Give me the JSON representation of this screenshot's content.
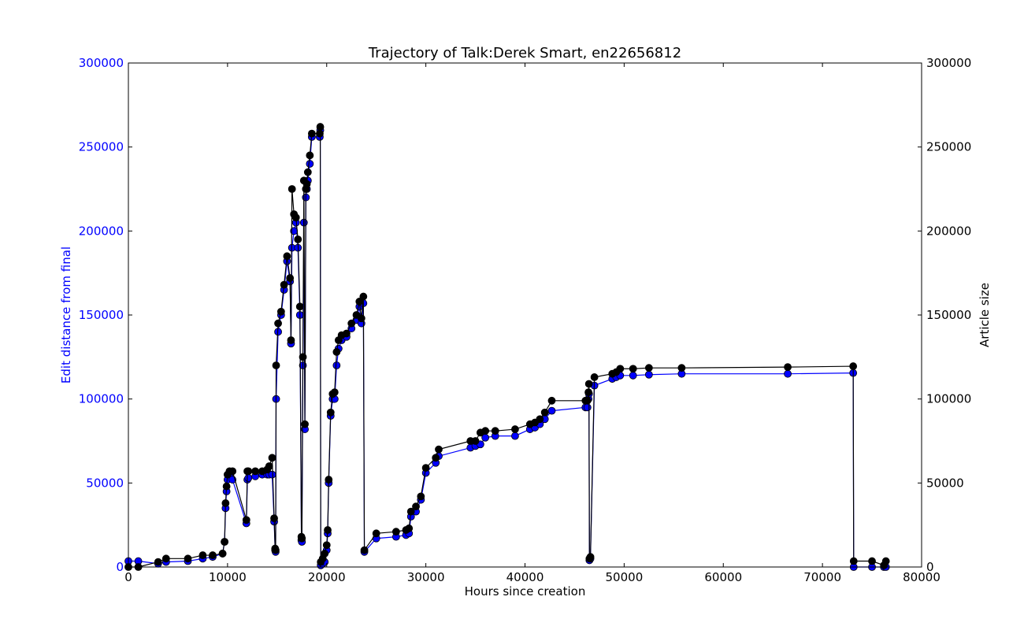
{
  "chart_data": {
    "type": "line",
    "title": "Trajectory of Talk:Derek Smart, en22656812",
    "xlabel": "Hours since creation",
    "ylabel_left": "Edit distance from final",
    "ylabel_right": "Article size",
    "xlim": [
      0,
      80000
    ],
    "ylim_left": [
      0,
      300000
    ],
    "ylim_right": [
      0,
      300000
    ],
    "x_ticks": [
      "0",
      "10000",
      "20000",
      "30000",
      "40000",
      "50000",
      "60000",
      "70000",
      "80000"
    ],
    "y_ticks_left": [
      "0",
      "50000",
      "100000",
      "150000",
      "200000",
      "250000",
      "300000"
    ],
    "y_ticks_right": [
      "0",
      "50000",
      "100000",
      "150000",
      "200000",
      "250000",
      "300000"
    ],
    "grid": false,
    "colors": {
      "left_axis": "#0000ff",
      "edit_distance": "#0000ff",
      "article_size": "#000000"
    },
    "series": [
      {
        "color": "#0000ff",
        "axis": "left",
        "x": [
          0,
          1000,
          3000,
          3800,
          6000,
          7500,
          8500,
          9500,
          9700,
          9800,
          9900,
          10000,
          10200,
          10500,
          11900,
          12000,
          12100,
          12800,
          13500,
          14000,
          14200,
          14500,
          14700,
          14800,
          14850,
          14900,
          15100,
          15400,
          15700,
          16000,
          16300,
          16400,
          16500,
          16700,
          16900,
          17100,
          17300,
          17450,
          17500,
          17600,
          17700,
          17800,
          17900,
          18000,
          18100,
          18300,
          18500,
          19300,
          19350,
          19400,
          19600,
          19800,
          20000,
          20100,
          20200,
          20400,
          20600,
          20800,
          21000,
          21200,
          21500,
          22000,
          22500,
          23000,
          23300,
          23500,
          23700,
          23800,
          25000,
          27000,
          28000,
          28300,
          28500,
          29000,
          29500,
          30000,
          31000,
          31300,
          34500,
          35000,
          35500,
          36000,
          37000,
          39000,
          40500,
          41000,
          41500,
          42000,
          42700,
          46100,
          46300,
          46400,
          46450,
          46500,
          46600,
          47000,
          48800,
          49200,
          49600,
          50900,
          52500,
          55800,
          66500,
          73100,
          73150,
          75000,
          76200,
          76400
        ],
        "y": [
          3500,
          3500,
          2000,
          3000,
          3500,
          5000,
          6000,
          8000,
          15000,
          35000,
          45000,
          52000,
          55000,
          52000,
          26000,
          52000,
          53000,
          54000,
          55000,
          55000,
          55000,
          55000,
          27000,
          10000,
          9000,
          100000,
          140000,
          150000,
          165000,
          182000,
          170000,
          133000,
          190000,
          200000,
          205000,
          190000,
          150000,
          16000,
          15000,
          120000,
          205000,
          82000,
          220000,
          225000,
          230000,
          240000,
          256000,
          256000,
          260000,
          1000,
          2000,
          3000,
          10000,
          20000,
          50000,
          90000,
          100000,
          100000,
          120000,
          130000,
          135000,
          137000,
          142000,
          147000,
          155000,
          145000,
          157000,
          9000,
          17000,
          18000,
          19000,
          20000,
          30000,
          33000,
          40000,
          56000,
          62000,
          66000,
          71000,
          72000,
          73000,
          77000,
          78000,
          78000,
          82000,
          83000,
          85000,
          88000,
          93000,
          95000,
          95000,
          100000,
          103000,
          4000,
          5000,
          108000,
          112000,
          113000,
          114000,
          114000,
          114500,
          115000,
          115000,
          115500,
          0,
          0,
          0,
          0
        ]
      },
      {
        "color": "#000000",
        "axis": "right",
        "x": [
          0,
          1000,
          3000,
          3800,
          6000,
          7500,
          8500,
          9500,
          9700,
          9800,
          9900,
          10000,
          10200,
          10500,
          11900,
          12000,
          12100,
          12800,
          13500,
          14000,
          14200,
          14500,
          14700,
          14800,
          14850,
          14900,
          15100,
          15400,
          15700,
          16000,
          16300,
          16400,
          16500,
          16700,
          16900,
          17100,
          17300,
          17450,
          17500,
          17600,
          17700,
          17800,
          17900,
          18000,
          18100,
          18300,
          18500,
          19300,
          19350,
          19400,
          19600,
          19800,
          20000,
          20100,
          20200,
          20400,
          20600,
          20800,
          21000,
          21200,
          21500,
          22000,
          22500,
          23000,
          23300,
          23500,
          23700,
          23800,
          25000,
          27000,
          28000,
          28300,
          28500,
          29000,
          29500,
          30000,
          31000,
          31300,
          34500,
          35000,
          35500,
          36000,
          37000,
          39000,
          40500,
          41000,
          41500,
          42000,
          42700,
          46100,
          46300,
          46400,
          46450,
          46500,
          46600,
          47000,
          48800,
          49200,
          49600,
          50900,
          52500,
          55800,
          66500,
          73100,
          73150,
          75000,
          76200,
          76400
        ],
        "y": [
          0,
          0,
          3000,
          5000,
          5000,
          7000,
          7000,
          8000,
          15000,
          38000,
          48000,
          55000,
          57000,
          57000,
          28000,
          57000,
          57000,
          57000,
          57000,
          58000,
          60000,
          65000,
          29000,
          11000,
          10000,
          120000,
          145000,
          152000,
          168000,
          185000,
          172000,
          135000,
          225000,
          210000,
          208000,
          195000,
          155000,
          18000,
          17000,
          125000,
          230000,
          85000,
          225000,
          228000,
          235000,
          245000,
          258000,
          258000,
          262000,
          3000,
          5000,
          8000,
          13000,
          22000,
          52000,
          92000,
          103000,
          104000,
          128000,
          135000,
          138000,
          139000,
          145000,
          150000,
          158000,
          148000,
          161000,
          10000,
          20000,
          21000,
          22000,
          23000,
          33000,
          36000,
          42000,
          59000,
          65000,
          70000,
          75000,
          75000,
          80000,
          81000,
          81000,
          82000,
          85000,
          86000,
          88000,
          92000,
          99000,
          99000,
          99000,
          104000,
          109000,
          5000,
          6000,
          113000,
          115000,
          116000,
          118000,
          118000,
          118500,
          118500,
          119000,
          119500,
          3500,
          3500,
          1000,
          3500
        ]
      }
    ]
  }
}
